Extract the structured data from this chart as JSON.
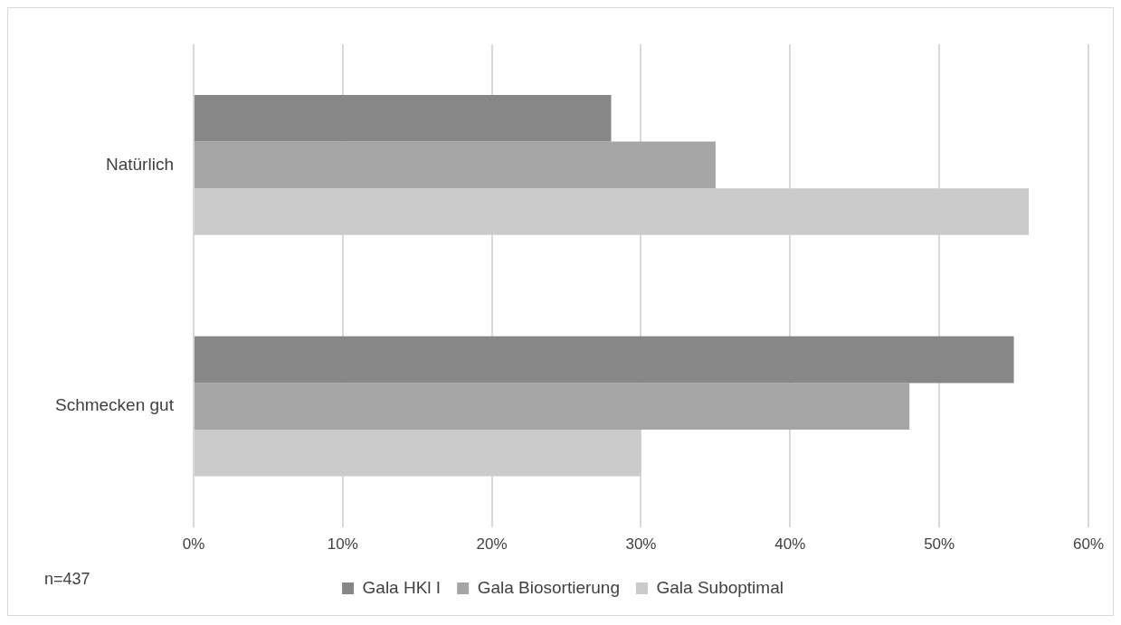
{
  "chart_data": {
    "type": "bar",
    "orientation": "horizontal",
    "categories": [
      "Natürlich",
      "Schmecken gut"
    ],
    "series": [
      {
        "name": "Gala HKl I",
        "color": "#878787",
        "values": [
          28,
          55
        ]
      },
      {
        "name": "Gala Biosortierung",
        "color": "#a5a5a5",
        "values": [
          35,
          48
        ]
      },
      {
        "name": "Gala Suboptimal",
        "color": "#cbcbcb",
        "values": [
          56,
          30
        ]
      }
    ],
    "xlim": [
      0,
      60
    ],
    "xticks": [
      {
        "value": 0,
        "label": "0%"
      },
      {
        "value": 10,
        "label": "10%"
      },
      {
        "value": 20,
        "label": "20%"
      },
      {
        "value": 30,
        "label": "30%"
      },
      {
        "value": 40,
        "label": "40%"
      },
      {
        "value": 50,
        "label": "50%"
      },
      {
        "value": 60,
        "label": "60%"
      }
    ],
    "grid": "x",
    "legend": "bottom",
    "annotations": [
      "n=437"
    ]
  }
}
